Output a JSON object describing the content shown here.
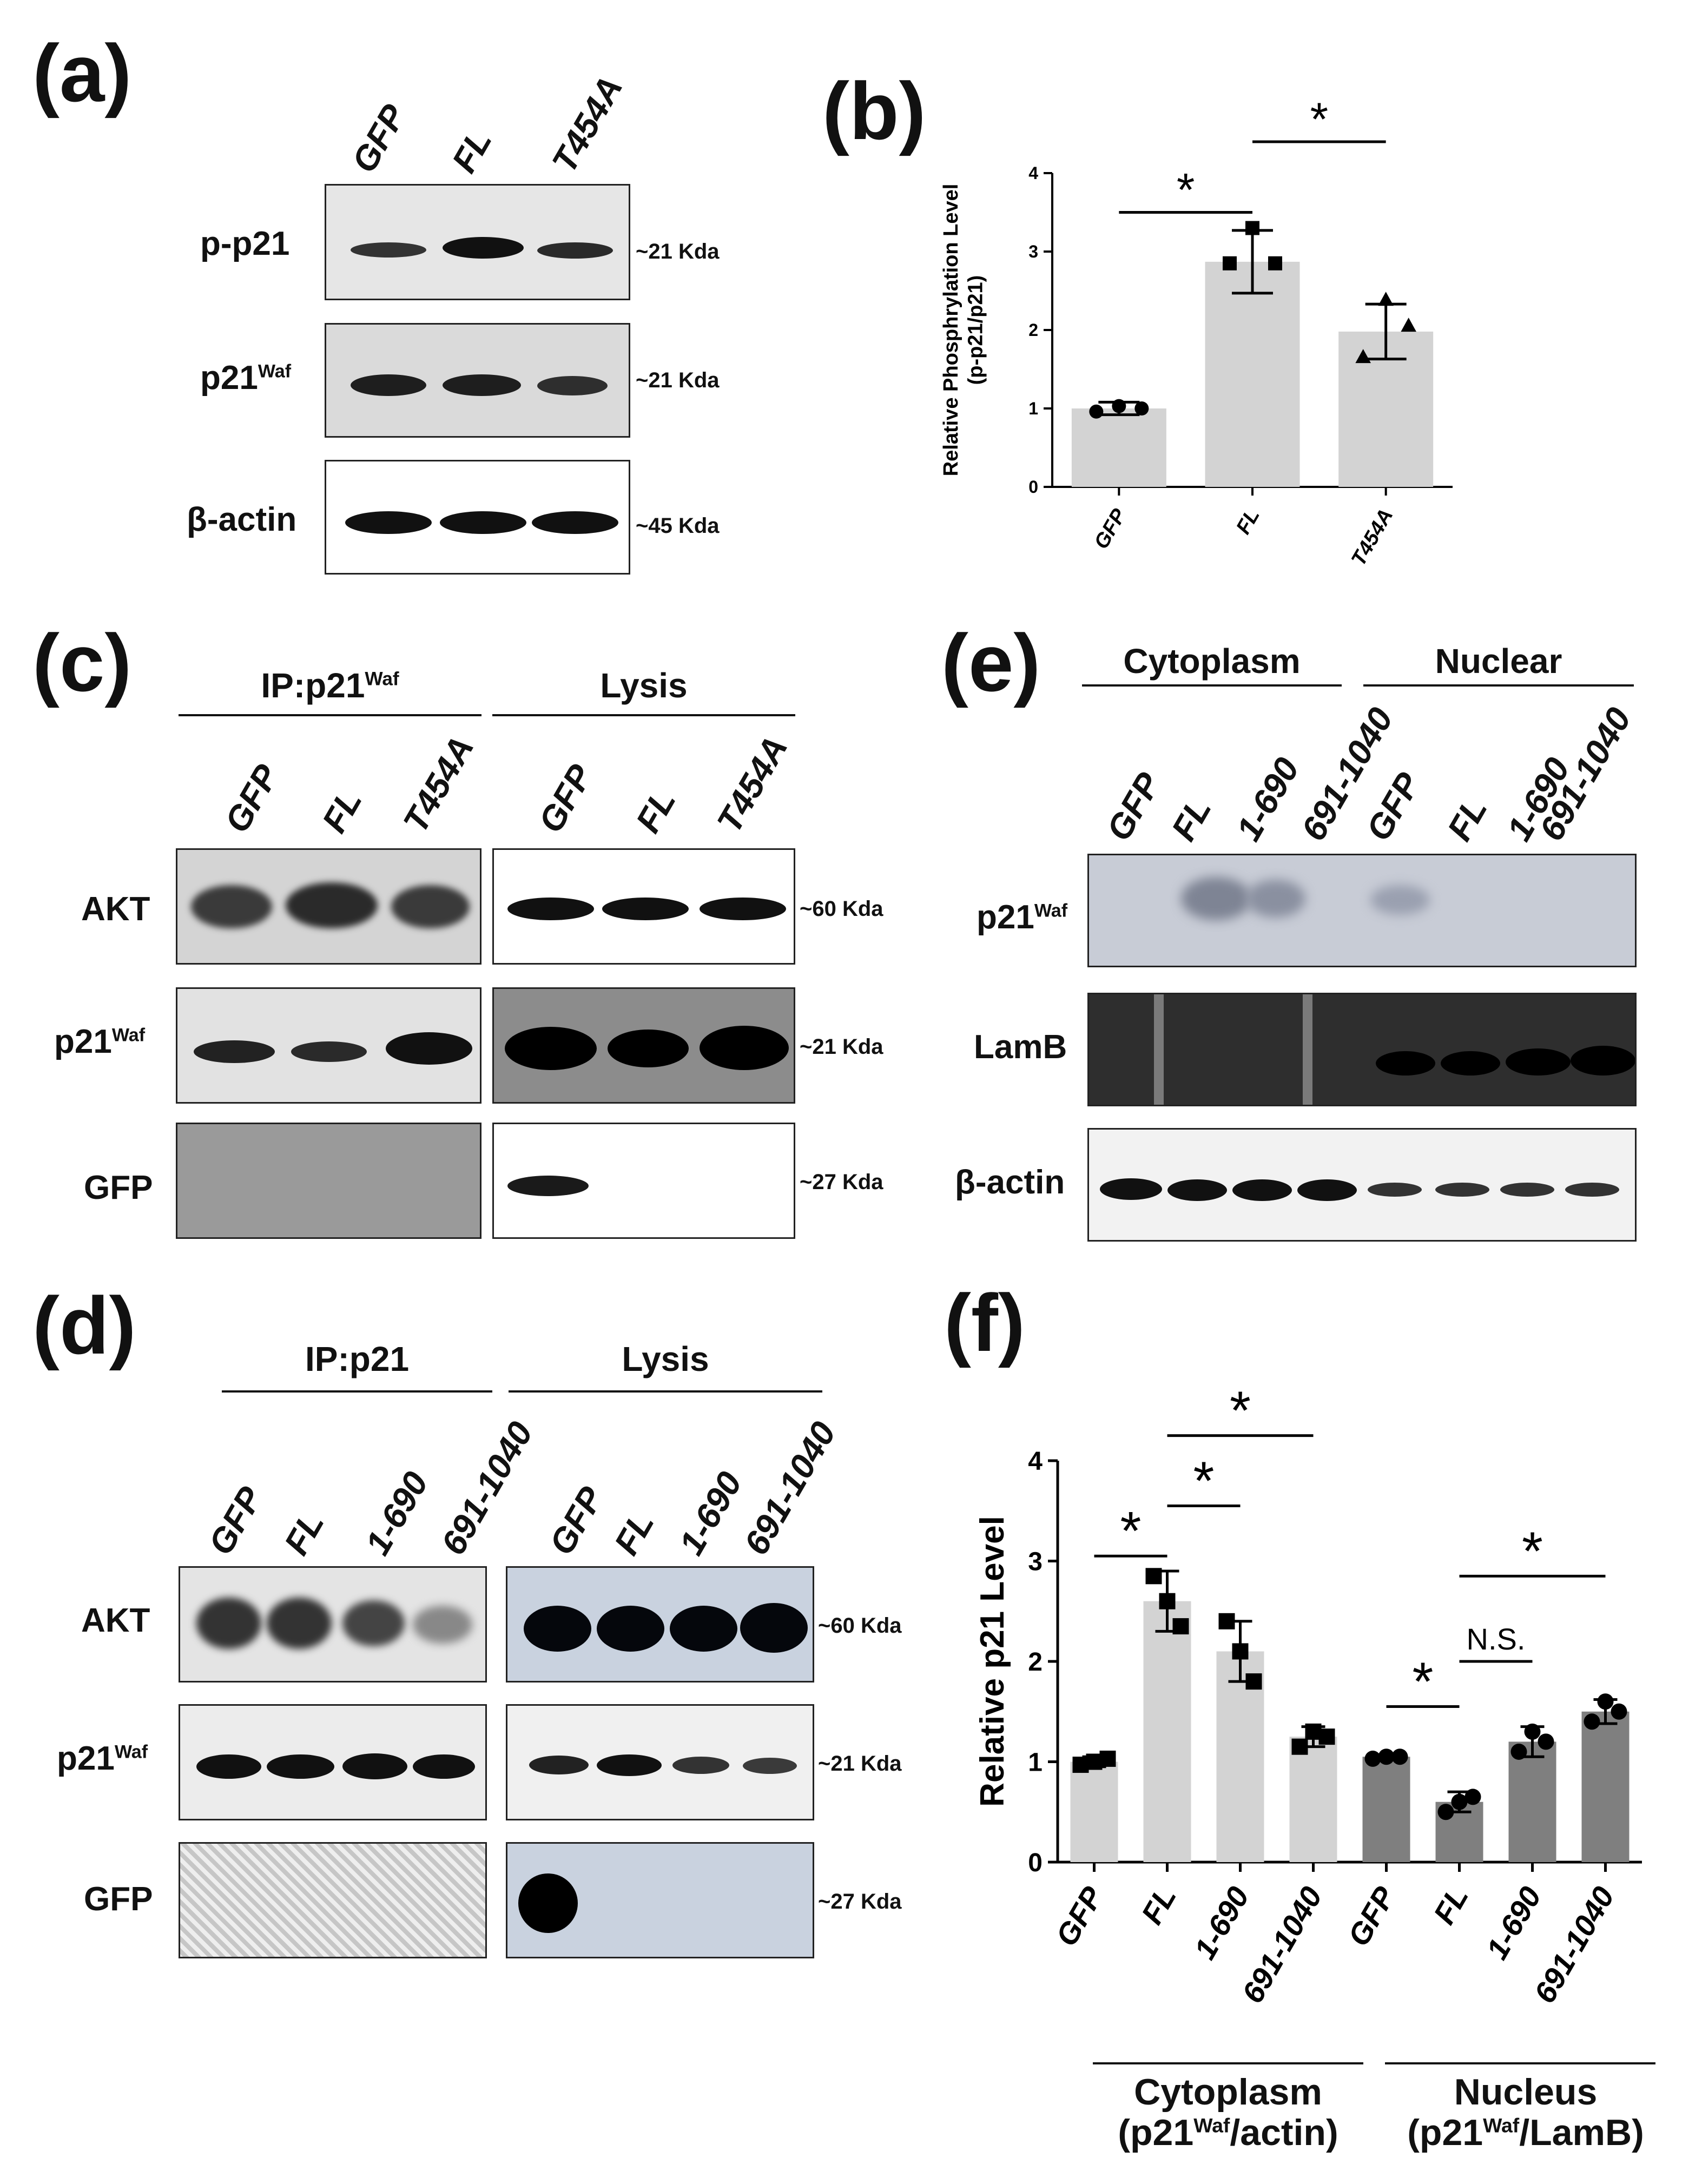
{
  "panels": {
    "a": {
      "label": "(a)",
      "lanes": [
        "GFP",
        "FL",
        "T454A"
      ],
      "rows": [
        {
          "label": "p-p21",
          "size": "~21 Kda"
        },
        {
          "label": "p21",
          "sup": "Waf",
          "size": "~21 Kda"
        },
        {
          "label": "β-actin",
          "size": "~45 Kda"
        }
      ]
    },
    "b": {
      "label": "(b)"
    },
    "c": {
      "label": "(c)",
      "groups": [
        {
          "label": "IP:p21",
          "sup": "Waf"
        },
        {
          "label": "Lysis"
        }
      ],
      "lanes": [
        "GFP",
        "FL",
        "T454A",
        "GFP",
        "FL",
        "T454A"
      ],
      "rows": [
        {
          "label": "AKT",
          "size": "~60 Kda"
        },
        {
          "label": "p21",
          "sup": "Waf",
          "size": "~21 Kda"
        },
        {
          "label": "GFP",
          "size": "~27 Kda"
        }
      ]
    },
    "d": {
      "label": "(d)",
      "groups": [
        {
          "label": "IP:p21"
        },
        {
          "label": "Lysis"
        }
      ],
      "lanes": [
        "GFP",
        "FL",
        "1-690",
        "691-1040",
        "GFP",
        "FL",
        "1-690",
        "691-1040"
      ],
      "rows": [
        {
          "label": "AKT",
          "size": "~60 Kda"
        },
        {
          "label": "p21",
          "sup": "Waf",
          "size": "~21 Kda"
        },
        {
          "label": "GFP",
          "size": "~27 Kda"
        }
      ]
    },
    "e": {
      "label": "(e)",
      "groups": [
        {
          "label": "Cytoplasm"
        },
        {
          "label": "Nuclear"
        }
      ],
      "lanes": [
        "GFP",
        "FL",
        "1-690",
        "691-1040",
        "GFP",
        "FL",
        "1-690",
        "691-1040"
      ],
      "rows": [
        {
          "label": "p21",
          "sup": "Waf"
        },
        {
          "label": "LamB"
        },
        {
          "label": "β-actin"
        }
      ]
    },
    "f": {
      "label": "(f)",
      "groups": [
        {
          "line1": "Cytoplasm",
          "line2a": "(p21",
          "sup": "Waf",
          "line2b": "/actin)"
        },
        {
          "line1": "Nucleus",
          "line2a": "(p21",
          "sup": "Waf",
          "line2b": "/LamB)"
        }
      ]
    }
  },
  "chart_data": [
    {
      "panel": "b",
      "type": "bar",
      "ylabel_line1": "Relative Phosphrylation Level",
      "ylabel_line2": "(p-p21/p21)",
      "categories": [
        "GFP",
        "FL",
        "T454A"
      ],
      "values": [
        1.0,
        2.87,
        1.98
      ],
      "errors": [
        0.08,
        0.4,
        0.35
      ],
      "points": [
        [
          0.96,
          1.03,
          1.0
        ],
        [
          2.85,
          3.3,
          2.85
        ],
        [
          1.65,
          2.38,
          2.05
        ]
      ],
      "ylim": [
        0,
        4
      ],
      "yticks": [
        0,
        1,
        2,
        3,
        4
      ],
      "bar_color": "#d3d3d3",
      "annotations": [
        {
          "text": "*",
          "from": 0,
          "to": 1,
          "y": 3.5
        },
        {
          "text": "*",
          "from": 1,
          "to": 2,
          "y": 4.4
        }
      ]
    },
    {
      "panel": "f",
      "type": "bar",
      "ylabel": "Relative p21 Level",
      "categories": [
        "GFP",
        "FL",
        "1-690",
        "691-1040",
        "GFP",
        "FL",
        "1-690",
        "691-1040"
      ],
      "values": [
        1.0,
        2.6,
        2.1,
        1.25,
        1.05,
        0.6,
        1.2,
        1.5
      ],
      "errors": [
        0.05,
        0.3,
        0.3,
        0.1,
        0.02,
        0.1,
        0.15,
        0.12
      ],
      "points": [
        [
          0.97,
          1.0,
          1.03
        ],
        [
          2.85,
          2.6,
          2.35
        ],
        [
          2.4,
          2.1,
          1.8
        ],
        [
          1.15,
          1.3,
          1.25
        ],
        [
          1.03,
          1.05,
          1.05
        ],
        [
          0.5,
          0.6,
          0.65
        ],
        [
          1.1,
          1.3,
          1.2
        ],
        [
          1.4,
          1.6,
          1.5
        ]
      ],
      "bar_colors": [
        "#d3d3d3",
        "#d3d3d3",
        "#d3d3d3",
        "#d3d3d3",
        "#7f7f7f",
        "#7f7f7f",
        "#7f7f7f",
        "#7f7f7f"
      ],
      "ylim": [
        0,
        4
      ],
      "yticks": [
        0,
        1,
        2,
        3,
        4
      ],
      "annotations": [
        {
          "text": "*",
          "from": 0,
          "to": 1,
          "y": 3.05
        },
        {
          "text": "*",
          "from": 1,
          "to": 2,
          "y": 3.55
        },
        {
          "text": "*",
          "from": 1,
          "to": 3,
          "y": 4.25
        },
        {
          "text": "*",
          "from": 4,
          "to": 5,
          "y": 1.55
        },
        {
          "text": "N.S.",
          "from": 5,
          "to": 6,
          "y": 2.0
        },
        {
          "text": "*",
          "from": 5,
          "to": 7,
          "y": 2.85
        }
      ]
    }
  ]
}
